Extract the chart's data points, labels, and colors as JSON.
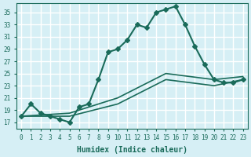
{
  "xlabel": "Humidex (Indice chaleur)",
  "ylabel": "",
  "bg_color": "#d6eff5",
  "grid_color": "#ffffff",
  "line_color": "#1a6b5a",
  "xlim": [
    -0.5,
    23.5
  ],
  "ylim": [
    16,
    36.5
  ],
  "xticks": [
    0,
    1,
    2,
    3,
    4,
    5,
    6,
    7,
    8,
    9,
    10,
    11,
    12,
    13,
    14,
    15,
    16,
    17,
    18,
    19,
    20,
    21,
    22,
    23
  ],
  "yticks": [
    17,
    19,
    21,
    23,
    25,
    27,
    29,
    31,
    33,
    35
  ],
  "series": [
    {
      "x": [
        0,
        1,
        2,
        3,
        4,
        5,
        6,
        7,
        8,
        9,
        10,
        11,
        12,
        13,
        14,
        15,
        16,
        17,
        18,
        19,
        20,
        21,
        22,
        23
      ],
      "y": [
        18,
        20,
        18.5,
        18,
        17.5,
        17,
        19.5,
        20,
        24,
        28.5,
        29,
        30.5,
        33,
        32.5,
        35,
        35.5,
        36,
        33,
        29.5,
        26.5,
        24,
        23.5,
        23.5,
        24
      ],
      "marker": "D",
      "markersize": 3,
      "linewidth": 1.5
    },
    {
      "x": [
        0,
        5,
        10,
        15,
        20,
        23
      ],
      "y": [
        18,
        18.5,
        21,
        25,
        24,
        24.5
      ],
      "marker": "",
      "markersize": 0,
      "linewidth": 1.2
    },
    {
      "x": [
        0,
        5,
        10,
        15,
        20,
        23
      ],
      "y": [
        18,
        18,
        20,
        24,
        23,
        24
      ],
      "marker": "",
      "markersize": 0,
      "linewidth": 1.2
    }
  ]
}
